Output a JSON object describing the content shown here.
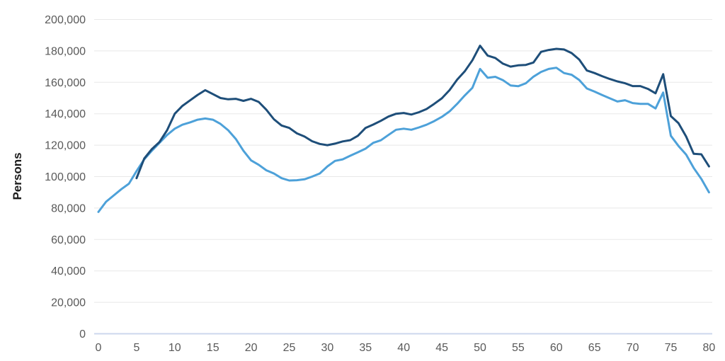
{
  "chart_data": {
    "type": "line",
    "title": "",
    "ylabel": "Persons",
    "xlabel": "",
    "xlim": [
      0,
      80
    ],
    "ylim": [
      0,
      200000
    ],
    "xtick_step": 5,
    "ytick_step": 20000,
    "grid": "horizontal",
    "legend_position": "none",
    "axis_text_color": "#595959",
    "gridline_color": "#e8e8e8",
    "baseline_color": "#ccd7ee",
    "x": "ages 0 to 80, step 1",
    "series": [
      {
        "name": "light_blue",
        "color": "#4da1d9",
        "x_start": 0,
        "values": [
          77500,
          84000,
          88000,
          92000,
          95500,
          103500,
          111000,
          116500,
          121500,
          126500,
          130500,
          133000,
          134500,
          136200,
          137000,
          136200,
          133500,
          129500,
          124000,
          116500,
          110300,
          107500,
          104000,
          102000,
          99000,
          97500,
          97700,
          98300,
          100000,
          102000,
          106500,
          110000,
          111000,
          113300,
          115500,
          117800,
          121500,
          123100,
          126500,
          129800,
          130500,
          129800,
          131300,
          133000,
          135300,
          138000,
          141500,
          146300,
          151600,
          156500,
          168500,
          162900,
          163500,
          161400,
          158000,
          157500,
          159400,
          163600,
          166600,
          168500,
          169300,
          165900,
          164800,
          161500,
          156100,
          154100,
          151900,
          149800,
          147800,
          148600,
          146800,
          146300,
          146300,
          143400,
          153500,
          126000,
          119500,
          114000,
          105500,
          98500,
          90000
        ]
      },
      {
        "name": "dark_blue",
        "color": "#1e4e79",
        "x_start": 5,
        "values": [
          99000,
          111500,
          117500,
          122000,
          129500,
          140000,
          145000,
          148500,
          152000,
          155000,
          152500,
          150000,
          149200,
          149500,
          148200,
          149500,
          147500,
          142500,
          136500,
          132500,
          131000,
          127500,
          125500,
          122500,
          120800,
          120000,
          121000,
          122400,
          123200,
          126000,
          131000,
          133100,
          135500,
          138200,
          140000,
          140500,
          139500,
          141000,
          143000,
          146300,
          149800,
          155000,
          161700,
          167000,
          174000,
          183300,
          177000,
          175500,
          171900,
          170000,
          170800,
          171100,
          172600,
          179400,
          180600,
          181300,
          180900,
          178600,
          174500,
          167500,
          165900,
          163900,
          162100,
          160600,
          159400,
          157600,
          157600,
          155800,
          153000,
          165200,
          138500,
          134000,
          125500,
          114500,
          114200,
          106500
        ]
      }
    ]
  }
}
